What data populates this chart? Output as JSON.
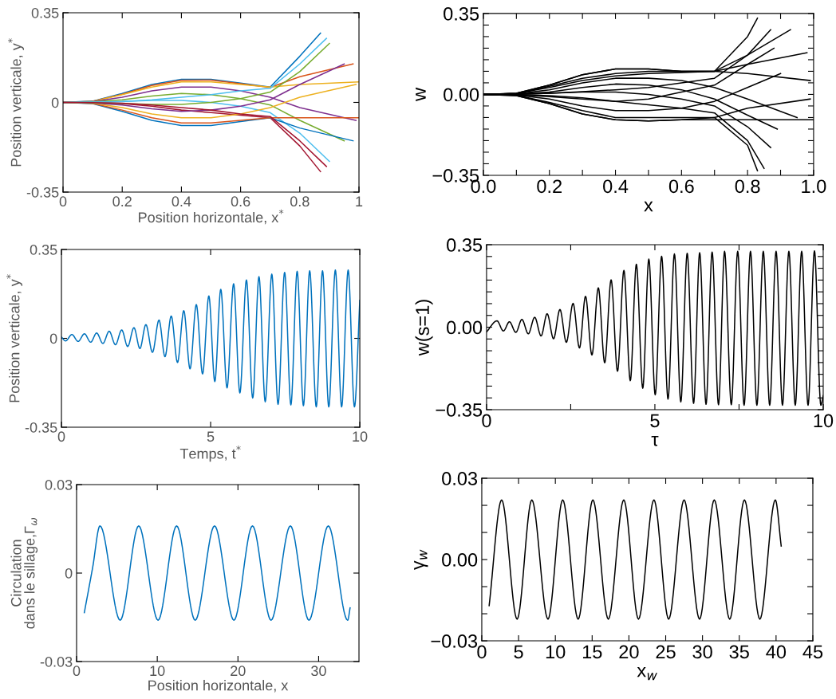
{
  "chart_data": [
    {
      "type": "line",
      "xlabel": "Position horizontale, x$^{*}$",
      "ylabel": "Position verticale, y$^{*}$",
      "xlim": [
        0,
        1
      ],
      "ylim": [
        -0.35,
        0.35
      ],
      "xticks": [
        0,
        0.2,
        0.4,
        0.6,
        0.8,
        1
      ],
      "yticks": [
        -0.35,
        0,
        0.35
      ],
      "series": [
        {
          "color": "#0072bd",
          "x": [
            0,
            0.1,
            0.2,
            0.3,
            0.4,
            0.5,
            0.6,
            0.7,
            0.8,
            0.87
          ],
          "values": [
            0,
            0.005,
            0.035,
            0.07,
            0.09,
            0.09,
            0.075,
            0.06,
            0.18,
            0.27
          ]
        },
        {
          "color": "#d95319",
          "x": [
            0,
            0.1,
            0.2,
            0.3,
            0.4,
            0.5,
            0.6,
            0.7,
            0.8,
            0.98
          ],
          "values": [
            0,
            0.004,
            0.032,
            0.066,
            0.086,
            0.087,
            0.073,
            0.058,
            0.1,
            0.15
          ]
        },
        {
          "color": "#edb120",
          "x": [
            0,
            0.1,
            0.2,
            0.3,
            0.4,
            0.5,
            0.6,
            0.7,
            0.8,
            1.0
          ],
          "values": [
            0,
            0.004,
            0.03,
            0.06,
            0.08,
            0.08,
            0.07,
            0.06,
            0.07,
            0.08
          ]
        },
        {
          "color": "#7e2f8e",
          "x": [
            0,
            0.1,
            0.2,
            0.3,
            0.4,
            0.5,
            0.6,
            0.7,
            0.8,
            0.99
          ],
          "values": [
            0,
            0.003,
            0.02,
            0.045,
            0.06,
            0.06,
            0.045,
            0.02,
            -0.02,
            -0.07
          ]
        },
        {
          "color": "#77ac30",
          "x": [
            0,
            0.1,
            0.2,
            0.3,
            0.4,
            0.5,
            0.6,
            0.7,
            0.8,
            0.95
          ],
          "values": [
            0,
            0.002,
            0.01,
            0.025,
            0.035,
            0.03,
            0.015,
            -0.01,
            -0.07,
            -0.15
          ]
        },
        {
          "color": "#4dbeee",
          "x": [
            0,
            0.1,
            0.2,
            0.3,
            0.4,
            0.5,
            0.6,
            0.7,
            0.8,
            0.9
          ],
          "values": [
            0,
            0.001,
            0.004,
            0.008,
            0.008,
            0,
            -0.015,
            -0.04,
            -0.12,
            -0.23
          ]
        },
        {
          "color": "#a2142f",
          "x": [
            0,
            0.1,
            0.2,
            0.3,
            0.4,
            0.5,
            0.6,
            0.7,
            0.8,
            0.87
          ],
          "values": [
            0,
            -0.001,
            -0.005,
            -0.015,
            -0.03,
            -0.04,
            -0.05,
            -0.06,
            -0.17,
            -0.27
          ]
        },
        {
          "color": "#0072bd",
          "x": [
            0,
            0.1,
            0.2,
            0.3,
            0.4,
            0.5,
            0.6,
            0.7,
            0.8,
            0.98
          ],
          "values": [
            0,
            -0.005,
            -0.035,
            -0.07,
            -0.09,
            -0.09,
            -0.075,
            -0.06,
            -0.1,
            -0.15
          ]
        },
        {
          "color": "#d95319",
          "x": [
            0,
            0.1,
            0.2,
            0.3,
            0.4,
            0.5,
            0.6,
            0.7,
            0.8,
            1.0
          ],
          "values": [
            0,
            -0.004,
            -0.03,
            -0.06,
            -0.08,
            -0.08,
            -0.07,
            -0.06,
            -0.06,
            -0.06
          ]
        },
        {
          "color": "#edb120",
          "x": [
            0,
            0.1,
            0.2,
            0.3,
            0.4,
            0.5,
            0.6,
            0.7,
            0.8,
            0.99
          ],
          "values": [
            0,
            -0.003,
            -0.02,
            -0.045,
            -0.06,
            -0.06,
            -0.045,
            -0.02,
            0.02,
            0.07
          ]
        },
        {
          "color": "#7e2f8e",
          "x": [
            0,
            0.1,
            0.2,
            0.3,
            0.4,
            0.5,
            0.6,
            0.7,
            0.8,
            0.95
          ],
          "values": [
            0,
            -0.002,
            -0.01,
            -0.025,
            -0.035,
            -0.03,
            -0.015,
            0.01,
            0.07,
            0.15
          ]
        },
        {
          "color": "#77ac30",
          "x": [
            0,
            0.1,
            0.2,
            0.3,
            0.4,
            0.5,
            0.6,
            0.7,
            0.8,
            0.9
          ],
          "values": [
            0,
            -0.0015,
            -0.004,
            -0.008,
            -0.008,
            0,
            0.015,
            0.04,
            0.12,
            0.23
          ]
        },
        {
          "color": "#4dbeee",
          "x": [
            0,
            0.1,
            0.2,
            0.3,
            0.4,
            0.5,
            0.6,
            0.7,
            0.8,
            0.89
          ],
          "values": [
            0,
            0.0005,
            0.003,
            0.01,
            0.02,
            0.03,
            0.045,
            0.055,
            0.15,
            0.25
          ]
        },
        {
          "color": "#a2142f",
          "x": [
            0,
            0.1,
            0.2,
            0.3,
            0.4,
            0.5,
            0.6,
            0.7,
            0.8,
            0.89
          ],
          "values": [
            0,
            -0.0005,
            -0.003,
            -0.01,
            -0.02,
            -0.03,
            -0.045,
            -0.055,
            -0.15,
            -0.25
          ]
        }
      ]
    },
    {
      "type": "line",
      "xlabel": "x",
      "ylabel": "w",
      "xlim": [
        0,
        1
      ],
      "ylim": [
        -0.35,
        0.35
      ],
      "xticks": [
        {
          "value": 0,
          "label": "0.0"
        },
        {
          "value": 0.1,
          "label": null
        },
        {
          "value": 0.2,
          "label": "0.2"
        },
        {
          "value": 0.3,
          "label": null
        },
        {
          "value": 0.4,
          "label": "0.4"
        },
        {
          "value": 0.5,
          "label": null
        },
        {
          "value": 0.6,
          "label": "0.6"
        },
        {
          "value": 0.7,
          "label": null
        },
        {
          "value": 0.8,
          "label": "0.8"
        },
        {
          "value": 0.9,
          "label": null
        },
        {
          "value": 1,
          "label": "1.0"
        }
      ],
      "yticks": [
        {
          "value": -0.35,
          "label": "−0.35"
        },
        {
          "value": -0.3,
          "label": null
        },
        {
          "value": -0.25,
          "label": null
        },
        {
          "value": -0.2,
          "label": null
        },
        {
          "value": -0.15,
          "label": null
        },
        {
          "value": -0.1,
          "label": null
        },
        {
          "value": -0.05,
          "label": null
        },
        {
          "value": 0,
          "label": "0.00"
        },
        {
          "value": 0.05,
          "label": null
        },
        {
          "value": 0.1,
          "label": null
        },
        {
          "value": 0.15,
          "label": null
        },
        {
          "value": 0.2,
          "label": null
        },
        {
          "value": 0.25,
          "label": null
        },
        {
          "value": 0.3,
          "label": null
        },
        {
          "value": 0.35,
          "label": "0.35"
        }
      ],
      "series": [
        {
          "color": "#000000",
          "x": [
            0,
            0.1,
            0.2,
            0.3,
            0.4,
            0.5,
            0.6,
            0.7,
            0.8,
            0.83
          ],
          "values": [
            0,
            0.005,
            0.04,
            0.085,
            0.11,
            0.11,
            0.1,
            0.1,
            0.25,
            0.33
          ]
        },
        {
          "color": "#000000",
          "x": [
            0,
            0.1,
            0.2,
            0.3,
            0.4,
            0.5,
            0.6,
            0.7,
            0.8,
            0.98
          ],
          "values": [
            0,
            0.005,
            0.04,
            0.085,
            0.11,
            0.11,
            0.1,
            0.1,
            0.13,
            0.18
          ]
        },
        {
          "color": "#000000",
          "x": [
            0,
            0.1,
            0.2,
            0.3,
            0.4,
            0.5,
            0.6,
            0.7,
            0.8,
            0.99
          ],
          "values": [
            0,
            0.004,
            0.035,
            0.07,
            0.09,
            0.1,
            0.1,
            0.1,
            0.09,
            0.06
          ]
        },
        {
          "color": "#000000",
          "x": [
            0,
            0.1,
            0.2,
            0.3,
            0.4,
            0.5,
            0.6,
            0.7,
            0.8,
            0.95
          ],
          "values": [
            0,
            0.003,
            0.02,
            0.05,
            0.07,
            0.07,
            0.06,
            0.03,
            -0.02,
            -0.1
          ]
        },
        {
          "color": "#000000",
          "x": [
            0,
            0.1,
            0.2,
            0.3,
            0.4,
            0.5,
            0.6,
            0.7,
            0.8,
            0.89
          ],
          "values": [
            0,
            0.002,
            0.01,
            0.03,
            0.045,
            0.04,
            0.02,
            -0.02,
            -0.09,
            -0.15
          ]
        },
        {
          "color": "#000000",
          "x": [
            0,
            0.1,
            0.2,
            0.3,
            0.4,
            0.5,
            0.6,
            0.7,
            0.8,
            0.87
          ],
          "values": [
            0,
            0.001,
            0.005,
            0.01,
            0.01,
            0,
            -0.02,
            -0.05,
            -0.14,
            -0.23
          ]
        },
        {
          "color": "#000000",
          "x": [
            0,
            0.1,
            0.2,
            0.3,
            0.4,
            0.5,
            0.6,
            0.7,
            0.8,
            0.85
          ],
          "values": [
            0,
            -0.001,
            -0.005,
            -0.015,
            -0.03,
            -0.045,
            -0.06,
            -0.08,
            -0.2,
            -0.32
          ]
        },
        {
          "color": "#000000",
          "x": [
            0,
            0.1,
            0.2,
            0.3,
            0.4,
            0.5,
            0.6,
            0.7,
            0.8,
            0.83
          ],
          "values": [
            0,
            -0.005,
            -0.04,
            -0.085,
            -0.11,
            -0.115,
            -0.11,
            -0.1,
            -0.22,
            -0.33
          ]
        },
        {
          "color": "#000000",
          "x": [
            0,
            0.1,
            0.2,
            0.3,
            0.4,
            0.5,
            0.6,
            0.7,
            0.8,
            1.0
          ],
          "values": [
            0,
            -0.005,
            -0.04,
            -0.085,
            -0.11,
            -0.115,
            -0.11,
            -0.11,
            -0.11,
            -0.11
          ]
        },
        {
          "color": "#000000",
          "x": [
            0,
            0.1,
            0.2,
            0.3,
            0.4,
            0.5,
            0.6,
            0.7,
            0.8,
            0.99
          ],
          "values": [
            0,
            -0.004,
            -0.035,
            -0.07,
            -0.1,
            -0.1,
            -0.1,
            -0.1,
            -0.06,
            -0.02
          ]
        },
        {
          "color": "#000000",
          "x": [
            0,
            0.1,
            0.2,
            0.3,
            0.4,
            0.5,
            0.6,
            0.7,
            0.8,
            0.9
          ],
          "values": [
            0,
            -0.003,
            -0.02,
            -0.05,
            -0.07,
            -0.07,
            -0.06,
            -0.03,
            0.03,
            0.09
          ]
        },
        {
          "color": "#000000",
          "x": [
            0,
            0.1,
            0.2,
            0.3,
            0.4,
            0.5,
            0.6,
            0.7,
            0.8,
            0.88
          ],
          "values": [
            0,
            -0.002,
            -0.01,
            -0.02,
            -0.03,
            -0.02,
            0.01,
            0.04,
            0.13,
            0.2
          ]
        },
        {
          "color": "#000000",
          "x": [
            0,
            0.1,
            0.2,
            0.3,
            0.4,
            0.5,
            0.6,
            0.7,
            0.8,
            0.87
          ],
          "values": [
            0,
            0,
            0.005,
            0.012,
            0.02,
            0.03,
            0.05,
            0.07,
            0.17,
            0.28
          ]
        },
        {
          "color": "#000000",
          "x": [
            0,
            0.1,
            0.2,
            0.3,
            0.4,
            0.5,
            0.6,
            0.7,
            0.8,
            0.93
          ],
          "values": [
            0,
            0.004,
            0.03,
            0.06,
            0.08,
            0.09,
            0.095,
            0.1,
            0.17,
            0.28
          ]
        }
      ]
    },
    {
      "type": "line",
      "xlabel": "Temps, t$^{*}$",
      "ylabel": "Position verticale, y$^{*}$",
      "xlim": [
        0,
        10
      ],
      "ylim": [
        -0.35,
        0.35
      ],
      "xticks": [
        0,
        5,
        10
      ],
      "yticks": [
        -0.35,
        0,
        0.35
      ],
      "series": [
        {
          "color": "#0072bd",
          "x": [
            0,
            0.14,
            0.35,
            0.56,
            0.77,
            0.98,
            1.18,
            1.39,
            1.6,
            1.81,
            2.02,
            2.22,
            2.43,
            2.63,
            2.83,
            3.05,
            3.27,
            3.47,
            3.68,
            3.89,
            4.1,
            4.31,
            4.52,
            4.73,
            4.94,
            5.14,
            5.34,
            5.55,
            5.77,
            5.98,
            6.2,
            6.41,
            6.62,
            6.83,
            7.05,
            7.26,
            7.48,
            7.69,
            7.9,
            8.11,
            8.32,
            8.54,
            8.75,
            8.96,
            9.18,
            9.39,
            9.61,
            9.82,
            10
          ],
          "values": [
            0.005,
            -0.01,
            0.015,
            -0.012,
            0.018,
            -0.015,
            0.021,
            -0.02,
            0.028,
            -0.025,
            0.033,
            -0.032,
            0.042,
            -0.04,
            0.054,
            -0.055,
            0.072,
            -0.072,
            0.088,
            -0.095,
            0.109,
            -0.12,
            0.133,
            -0.14,
            0.167,
            -0.17,
            0.193,
            -0.195,
            0.215,
            -0.215,
            0.23,
            -0.235,
            0.243,
            -0.25,
            0.253,
            -0.26,
            0.26,
            -0.262,
            0.264,
            -0.265,
            0.266,
            -0.27,
            0.266,
            -0.27,
            0.269,
            -0.27,
            0.269,
            -0.27,
            0.15
          ]
        }
      ]
    },
    {
      "type": "line",
      "xlabel": "τ",
      "ylabel": "w(s=1)",
      "xlim": [
        0,
        10
      ],
      "ylim": [
        -0.35,
        0.35
      ],
      "xticks": [
        0,
        {
          "value": 2.5,
          "label": null
        },
        5,
        {
          "value": 7.5,
          "label": null
        },
        10
      ],
      "yticks": [
        {
          "value": -0.35,
          "label": "−0.35"
        },
        {
          "value": -0.3,
          "label": null
        },
        {
          "value": -0.25,
          "label": null
        },
        {
          "value": -0.2,
          "label": null
        },
        {
          "value": -0.15,
          "label": null
        },
        {
          "value": -0.1,
          "label": null
        },
        {
          "value": -0.05,
          "label": null
        },
        {
          "value": 0,
          "label": "0.00"
        },
        {
          "value": 0.05,
          "label": null
        },
        {
          "value": 0.1,
          "label": null
        },
        {
          "value": 0.15,
          "label": null
        },
        {
          "value": 0.2,
          "label": null
        },
        {
          "value": 0.25,
          "label": null
        },
        {
          "value": 0.3,
          "label": null
        },
        {
          "value": 0.35,
          "label": "0.35"
        }
      ],
      "series": [
        {
          "color": "#000000",
          "x": [
            0,
            0.31,
            0.5,
            0.68,
            0.87,
            1.05,
            1.24,
            1.43,
            1.62,
            1.8,
            1.99,
            2.18,
            2.37,
            2.57,
            2.76,
            2.94,
            3.13,
            3.32,
            3.51,
            3.7,
            3.89,
            4.08,
            4.27,
            4.45,
            4.64,
            4.82,
            5.01,
            5.2,
            5.39,
            5.58,
            5.77,
            5.96,
            6.15,
            6.33,
            6.52,
            6.7,
            6.89,
            7.07,
            7.27,
            7.46,
            7.65,
            7.84,
            8.03,
            8.22,
            8.41,
            8.6,
            8.79,
            8.98,
            9.17,
            9.36,
            9.55,
            9.74,
            9.93,
            10
          ],
          "values": [
            -0.02,
            0.027,
            -0.016,
            0.023,
            -0.022,
            0.033,
            -0.028,
            0.042,
            -0.037,
            0.057,
            -0.049,
            0.075,
            -0.064,
            0.101,
            -0.088,
            0.131,
            -0.118,
            0.167,
            -0.151,
            0.201,
            -0.187,
            0.241,
            -0.227,
            0.267,
            -0.259,
            0.289,
            -0.287,
            0.301,
            -0.305,
            0.311,
            -0.317,
            0.314,
            -0.323,
            0.316,
            -0.327,
            0.319,
            -0.329,
            0.322,
            -0.329,
            0.322,
            -0.331,
            0.322,
            -0.331,
            0.322,
            -0.331,
            0.322,
            -0.331,
            0.322,
            -0.331,
            0.322,
            -0.331,
            0.324,
            -0.331,
            -0.29
          ]
        }
      ]
    },
    {
      "type": "line",
      "xlabel": "Position horizontale, x",
      "ylabel": "Circulation\ndans le sillage,Γ$_{ω}$",
      "xlim": [
        0,
        35
      ],
      "ylim": [
        -0.03,
        0.03
      ],
      "xticks": [
        0,
        10,
        20,
        30
      ],
      "yticks": [
        -0.03,
        0,
        0.03
      ],
      "series": [
        {
          "color": "#0072bd",
          "x": [
            0.96,
            2.0,
            2.9,
            5.4,
            7.7,
            10.1,
            12.4,
            14.7,
            17.1,
            19.5,
            21.8,
            24.1,
            26.5,
            28.8,
            31.2,
            33.6,
            33.9
          ],
          "values": [
            -0.0134,
            0.002,
            0.016,
            -0.016,
            0.016,
            -0.016,
            0.016,
            -0.016,
            0.016,
            -0.016,
            0.016,
            -0.016,
            0.016,
            -0.016,
            0.016,
            -0.016,
            -0.0118
          ]
        }
      ]
    },
    {
      "type": "line",
      "xlabel": "x$_{w}$",
      "ylabel": "γ$_{w}$",
      "xlim": [
        0,
        45
      ],
      "ylim": [
        -0.03,
        0.03
      ],
      "xticks": [
        0,
        5,
        10,
        15,
        20,
        25,
        30,
        35,
        40,
        45
      ],
      "yticks": [
        {
          "value": -0.03,
          "label": "−0.03"
        },
        {
          "value": -0.02,
          "label": null
        },
        {
          "value": -0.01,
          "label": null
        },
        {
          "value": 0,
          "label": "0.00"
        },
        {
          "value": 0.01,
          "label": null
        },
        {
          "value": 0.02,
          "label": null
        },
        {
          "value": 0.03,
          "label": "0.03"
        }
      ],
      "series": [
        {
          "color": "#000000",
          "x": [
            1.0,
            2.7,
            4.8,
            6.8,
            9.0,
            11.0,
            13.1,
            15.1,
            17.2,
            19.3,
            21.3,
            23.4,
            25.4,
            27.5,
            29.6,
            31.6,
            33.7,
            35.7,
            37.8,
            39.9,
            40.7
          ],
          "values": [
            -0.017,
            0.022,
            -0.022,
            0.022,
            -0.022,
            0.022,
            -0.022,
            0.022,
            -0.022,
            0.022,
            -0.022,
            0.022,
            -0.022,
            0.022,
            -0.022,
            0.022,
            -0.022,
            0.022,
            -0.022,
            0.022,
            0.005
          ]
        }
      ]
    }
  ]
}
